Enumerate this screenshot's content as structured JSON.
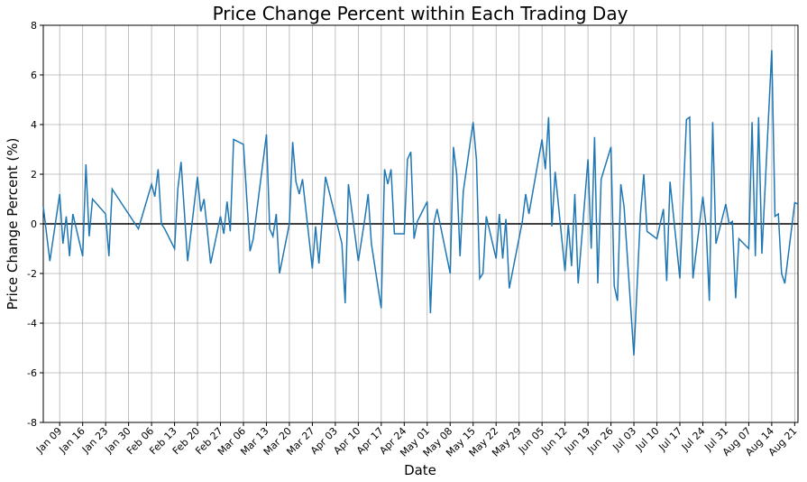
{
  "chart_data": {
    "type": "line",
    "title": "Price Change Percent within Each Trading Day",
    "x_label": "Date",
    "y_label": "Price Change Percent (%)",
    "x": [
      "Jan 04",
      "Jan 06",
      "Jan 09",
      "Jan 10",
      "Jan 11",
      "Jan 12",
      "Jan 13",
      "Jan 16",
      "Jan 17",
      "Jan 18",
      "Jan 19",
      "Jan 23",
      "Jan 24",
      "Jan 25",
      "Feb 02",
      "Feb 06",
      "Feb 07",
      "Feb 08",
      "Feb 09",
      "Feb 10",
      "Feb 13",
      "Feb 14",
      "Feb 15",
      "Feb 17",
      "Feb 20",
      "Feb 21",
      "Feb 22",
      "Feb 24",
      "Feb 27",
      "Feb 28",
      "Mar 01",
      "Mar 02",
      "Mar 03",
      "Mar 06",
      "Mar 08",
      "Mar 09",
      "Mar 13",
      "Mar 14",
      "Mar 15",
      "Mar 16",
      "Mar 17",
      "Mar 20",
      "Mar 21",
      "Mar 22",
      "Mar 23",
      "Mar 24",
      "Mar 27",
      "Mar 28",
      "Mar 29",
      "Mar 31",
      "Apr 05",
      "Apr 06",
      "Apr 07",
      "Apr 10",
      "Apr 12",
      "Apr 13",
      "Apr 14",
      "Apr 17",
      "Apr 18",
      "Apr 19",
      "Apr 20",
      "Apr 21",
      "Apr 24",
      "Apr 25",
      "Apr 26",
      "Apr 27",
      "Apr 28",
      "May 01",
      "May 02",
      "May 03",
      "May 04",
      "May 08",
      "May 09",
      "May 10",
      "May 11",
      "May 12",
      "May 15",
      "May 16",
      "May 17",
      "May 18",
      "May 19",
      "May 22",
      "May 23",
      "May 24",
      "May 25",
      "May 26",
      "May 30",
      "May 31",
      "Jun 01",
      "Jun 05",
      "Jun 06",
      "Jun 07",
      "Jun 08",
      "Jun 09",
      "Jun 12",
      "Jun 13",
      "Jun 14",
      "Jun 15",
      "Jun 16",
      "Jun 19",
      "Jun 20",
      "Jun 21",
      "Jun 22",
      "Jun 23",
      "Jun 26",
      "Jun 27",
      "Jun 28",
      "Jun 29",
      "Jun 30",
      "Jul 03",
      "Jul 05",
      "Jul 06",
      "Jul 07",
      "Jul 10",
      "Jul 12",
      "Jul 13",
      "Jul 14",
      "Jul 17",
      "Jul 19",
      "Jul 20",
      "Jul 21",
      "Jul 24",
      "Jul 25",
      "Jul 26",
      "Jul 27",
      "Jul 28",
      "Jul 31",
      "Aug 01",
      "Aug 02",
      "Aug 03",
      "Aug 04",
      "Aug 07",
      "Aug 08",
      "Aug 09",
      "Aug 10",
      "Aug 11",
      "Aug 14",
      "Aug 15",
      "Aug 16",
      "Aug 17",
      "Aug 18",
      "Aug 21",
      "Aug 22"
    ],
    "series": [
      {
        "color": "#1f77b4",
        "values": [
          0.7,
          -1.5,
          1.2,
          -0.8,
          0.3,
          -1.3,
          0.4,
          -1.3,
          2.4,
          -0.5,
          1.0,
          0.4,
          -1.3,
          1.4,
          -0.2,
          1.6,
          1.1,
          2.2,
          0.0,
          -0.2,
          -1.0,
          1.4,
          2.5,
          -1.5,
          1.9,
          0.5,
          1.0,
          -1.6,
          0.3,
          -0.4,
          0.9,
          -0.3,
          3.4,
          3.2,
          -1.1,
          -0.6,
          3.6,
          -0.2,
          -0.5,
          0.4,
          -2.0,
          0.0,
          3.3,
          1.7,
          1.2,
          1.8,
          -1.8,
          -0.1,
          -1.6,
          1.9,
          -0.8,
          -3.2,
          1.6,
          -1.5,
          0.2,
          1.2,
          -0.8,
          -3.4,
          2.2,
          1.6,
          2.2,
          -0.4,
          -0.4,
          2.6,
          2.9,
          -0.6,
          0.1,
          0.9,
          -3.6,
          0.0,
          0.6,
          -2.0,
          3.1,
          2.0,
          -1.3,
          1.3,
          4.1,
          2.6,
          -2.2,
          -2.0,
          0.3,
          -1.4,
          0.4,
          -1.4,
          0.2,
          -2.6,
          0.1,
          1.2,
          0.4,
          3.4,
          2.2,
          4.3,
          -0.1,
          2.1,
          -1.9,
          0.0,
          -1.7,
          1.2,
          -2.4,
          2.6,
          -1.0,
          3.5,
          -2.4,
          1.8,
          3.1,
          -2.5,
          -3.1,
          1.6,
          0.7,
          -5.3,
          0.4,
          2.0,
          -0.3,
          -0.6,
          0.6,
          -2.3,
          1.7,
          -2.2,
          4.2,
          4.3,
          -2.2,
          1.1,
          -0.1,
          -3.1,
          4.1,
          -0.8,
          0.8,
          0.0,
          0.1,
          -3.0,
          -0.6,
          -1.0,
          4.1,
          -1.3,
          4.3,
          -1.2,
          7.0,
          0.3,
          0.4,
          -2.0,
          -2.4,
          0.85,
          0.8
        ]
      }
    ],
    "xlim": [
      "Jan 04",
      "Aug 22"
    ],
    "xticks": [
      "Jan 09",
      "Jan 16",
      "Jan 23",
      "Jan 30",
      "Feb 06",
      "Feb 13",
      "Feb 20",
      "Feb 27",
      "Mar 06",
      "Mar 13",
      "Mar 20",
      "Mar 27",
      "Apr 03",
      "Apr 10",
      "Apr 17",
      "Apr 24",
      "May 01",
      "May 08",
      "May 15",
      "May 22",
      "May 29",
      "Jun 05",
      "Jun 12",
      "Jun 19",
      "Jun 26",
      "Jul 03",
      "Jul 10",
      "Jul 17",
      "Jul 24",
      "Jul 31",
      "Aug 07",
      "Aug 14",
      "Aug 21"
    ],
    "ylim": [
      -8,
      8
    ],
    "yticks": [
      -8,
      -6,
      -4,
      -2,
      0,
      2,
      4,
      6,
      8
    ],
    "grid": true,
    "hline": 0
  }
}
